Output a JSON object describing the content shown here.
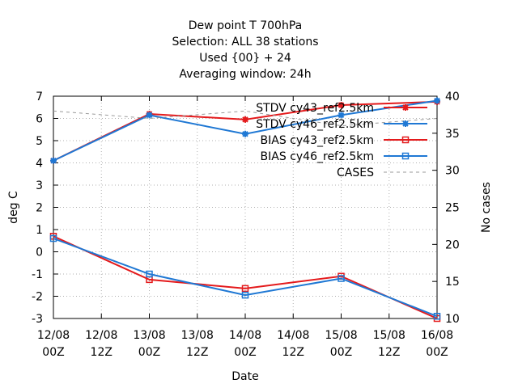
{
  "chart_data": {
    "type": "line",
    "title_lines": [
      "Dew point T 700hPa",
      "Selection: ALL     38 stations",
      "Used {00} + 24",
      "Averaging window: 24h"
    ],
    "xlabel": "Date",
    "ylabel": "deg C",
    "y2label": "No cases",
    "x_ticks": [
      {
        "line1": "12/08",
        "line2": "00Z"
      },
      {
        "line1": "12/08",
        "line2": "12Z"
      },
      {
        "line1": "13/08",
        "line2": "00Z"
      },
      {
        "line1": "13/08",
        "line2": "12Z"
      },
      {
        "line1": "14/08",
        "line2": "00Z"
      },
      {
        "line1": "14/08",
        "line2": "12Z"
      },
      {
        "line1": "15/08",
        "line2": "00Z"
      },
      {
        "line1": "15/08",
        "line2": "12Z"
      },
      {
        "line1": "16/08",
        "line2": "00Z"
      }
    ],
    "ylim": [
      -3,
      7
    ],
    "y_ticks": [
      -3,
      -2,
      -1,
      0,
      1,
      2,
      3,
      4,
      5,
      6,
      7
    ],
    "y2lim": [
      10,
      40
    ],
    "y2_ticks": [
      10,
      15,
      20,
      25,
      30,
      35,
      40
    ],
    "grid": true,
    "legend_position": "top-right",
    "series": [
      {
        "name": "STDV cy43_ref2.5km",
        "axis": "y",
        "color": "#e41a1c",
        "marker": "star",
        "dash": "solid",
        "points": [
          [
            0,
            4.1
          ],
          [
            2,
            6.2
          ],
          [
            4,
            5.95
          ],
          [
            6,
            6.6
          ],
          [
            8,
            6.75
          ]
        ]
      },
      {
        "name": "STDV cy46_ref2.5km",
        "axis": "y",
        "color": "#1f78d4",
        "marker": "star",
        "dash": "solid",
        "points": [
          [
            0,
            4.1
          ],
          [
            2,
            6.15
          ],
          [
            4,
            5.3
          ],
          [
            6,
            6.15
          ],
          [
            8,
            6.8
          ]
        ]
      },
      {
        "name": "BIAS cy43_ref2.5km",
        "axis": "y",
        "color": "#e41a1c",
        "marker": "square",
        "dash": "solid",
        "points": [
          [
            0,
            0.7
          ],
          [
            2,
            -1.25
          ],
          [
            4,
            -1.65
          ],
          [
            6,
            -1.1
          ],
          [
            8,
            -3.0
          ]
        ]
      },
      {
        "name": "BIAS cy46_ref2.5km",
        "axis": "y",
        "color": "#1f78d4",
        "marker": "square",
        "dash": "solid",
        "points": [
          [
            0,
            0.6
          ],
          [
            2,
            -1.0
          ],
          [
            4,
            -1.95
          ],
          [
            6,
            -1.2
          ],
          [
            8,
            -2.9
          ]
        ]
      },
      {
        "name": "CASES",
        "axis": "y2",
        "color": "#999999",
        "marker": "none",
        "dash": "dashed",
        "points": [
          [
            0,
            38
          ],
          [
            2,
            37
          ],
          [
            4,
            38
          ],
          [
            6,
            36
          ],
          [
            8,
            37
          ]
        ]
      }
    ]
  }
}
